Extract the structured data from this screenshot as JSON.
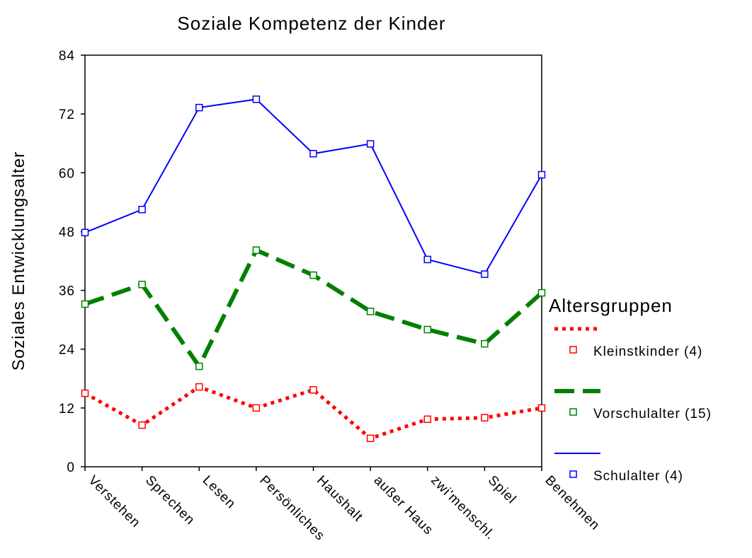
{
  "chart_data": {
    "type": "line",
    "title": "Soziale Kompetenz der Kinder",
    "y_label": "Soziales Entwicklungsalter",
    "legend_title": "Altersgruppen",
    "legend": "right",
    "categories": [
      "Verstehen",
      "Sprechen",
      "Lesen",
      "Persönliches",
      "Haushalt",
      "außer Haus",
      "zwi'menschl.",
      "Spiel",
      "Benehmen"
    ],
    "ylim": [
      0,
      84
    ],
    "yticks": [
      0,
      12,
      24,
      36,
      48,
      60,
      72,
      84
    ],
    "series": [
      {
        "name": "Kleinstkinder (4)",
        "color": "#ff0000",
        "line_style": "dotted",
        "values": [
          15.0,
          8.5,
          16.3,
          12.0,
          15.7,
          5.8,
          9.7,
          10.0,
          12.0
        ]
      },
      {
        "name": "Vorschulalter (15)",
        "color": "#008000",
        "line_style": "dashed",
        "values": [
          33.2,
          37.2,
          20.5,
          44.2,
          39.1,
          31.7,
          28.0,
          25.1,
          35.5
        ]
      },
      {
        "name": "Schulalter (4)",
        "color": "#0000ff",
        "line_style": "solid",
        "values": [
          47.8,
          52.5,
          73.3,
          75.0,
          63.9,
          65.9,
          42.3,
          39.3,
          59.6
        ]
      }
    ]
  }
}
